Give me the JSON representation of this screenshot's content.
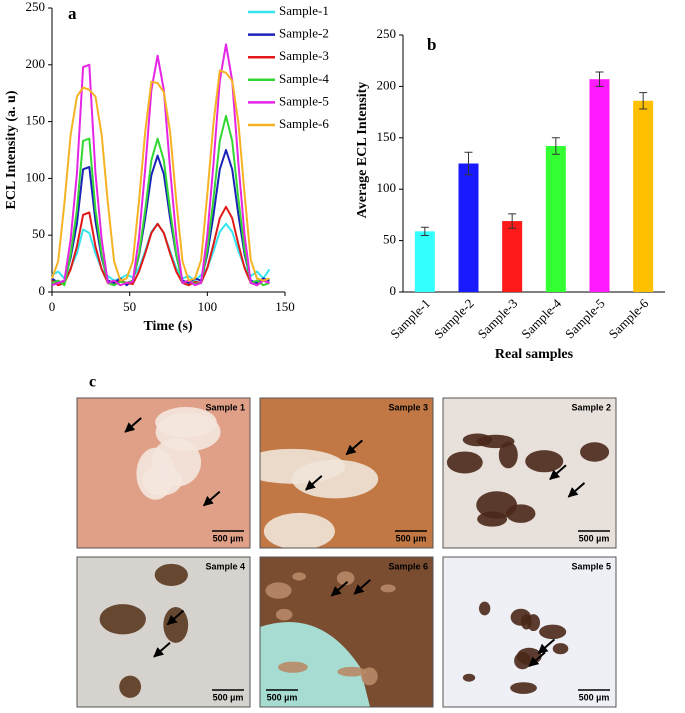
{
  "chart_data": [
    {
      "type": "line",
      "title": "a",
      "x_label": "Time (s)",
      "y_label": "ECL Intensity (a. u)",
      "x": [
        0,
        4,
        8,
        12,
        16,
        20,
        24,
        28,
        32,
        36,
        40,
        44,
        48,
        52,
        56,
        60,
        64,
        68,
        72,
        76,
        80,
        84,
        88,
        92,
        96,
        100,
        104,
        108,
        112,
        116,
        120,
        124,
        128,
        132,
        136,
        140
      ],
      "series": [
        {
          "name": "Sample-1",
          "color": "#33e5f0",
          "values": [
            15,
            18,
            12,
            21,
            34,
            55,
            52,
            34,
            20,
            14,
            10,
            12,
            15,
            13,
            21,
            36,
            53,
            60,
            52,
            36,
            21,
            12,
            14,
            10,
            15,
            21,
            36,
            53,
            60,
            53,
            36,
            22,
            14,
            18,
            12,
            20
          ]
        },
        {
          "name": "Sample-2",
          "color": "#1a22b8",
          "values": [
            12,
            8,
            10,
            30,
            60,
            108,
            110,
            62,
            30,
            10,
            8,
            12,
            6,
            10,
            32,
            65,
            103,
            120,
            104,
            65,
            32,
            10,
            8,
            12,
            10,
            33,
            68,
            108,
            125,
            108,
            68,
            33,
            10,
            8,
            12,
            10
          ]
        },
        {
          "name": "Sample-3",
          "color": "#e01818",
          "values": [
            10,
            6,
            8,
            20,
            40,
            68,
            70,
            40,
            20,
            8,
            6,
            10,
            8,
            7,
            18,
            34,
            52,
            60,
            52,
            34,
            18,
            8,
            6,
            9,
            8,
            21,
            42,
            65,
            75,
            65,
            42,
            21,
            8,
            6,
            10,
            8
          ]
        },
        {
          "name": "Sample-4",
          "color": "#33d633",
          "values": [
            8,
            10,
            6,
            33,
            72,
            133,
            135,
            72,
            33,
            8,
            6,
            9,
            8,
            10,
            33,
            72,
            116,
            135,
            116,
            72,
            33,
            8,
            10,
            7,
            8,
            37,
            82,
            133,
            155,
            133,
            82,
            37,
            8,
            10,
            6,
            8
          ]
        },
        {
          "name": "Sample-5",
          "color": "#e524e5",
          "values": [
            6,
            8,
            10,
            46,
            104,
            198,
            200,
            104,
            46,
            8,
            10,
            6,
            8,
            9,
            48,
            108,
            178,
            208,
            178,
            108,
            48,
            8,
            10,
            6,
            8,
            50,
            113,
            186,
            218,
            186,
            113,
            50,
            8,
            6,
            10,
            8
          ]
        },
        {
          "name": "Sample-6",
          "color": "#f5b324",
          "values": [
            12,
            27,
            78,
            138,
            172,
            180,
            178,
            172,
            138,
            78,
            27,
            10,
            12,
            27,
            80,
            141,
            185,
            184,
            176,
            141,
            80,
            27,
            10,
            12,
            28,
            86,
            149,
            195,
            193,
            186,
            149,
            86,
            28,
            12,
            10,
            12
          ]
        }
      ],
      "xlim": [
        0,
        150
      ],
      "xticks": [
        0,
        50,
        100,
        150
      ],
      "ylim": [
        0,
        250
      ],
      "yticks": [
        0,
        50,
        100,
        150,
        200,
        250
      ],
      "legend": "upper right"
    },
    {
      "type": "bar",
      "title": "b",
      "x_label": "Real samples",
      "y_label": "Average ECL Intensity",
      "categories": [
        "Sample-1",
        "Sample-2",
        "Sample-3",
        "Sample-4",
        "Sample-5",
        "Sample-6"
      ],
      "values": [
        59,
        125,
        69,
        142,
        207,
        186
      ],
      "errors": [
        4,
        11,
        7,
        8,
        7,
        8
      ],
      "colors": [
        "#33ffff",
        "#1a1aff",
        "#ff1a1a",
        "#33ff33",
        "#ff1aff",
        "#ffc000"
      ],
      "ylim": [
        0,
        250
      ],
      "yticks": [
        0,
        50,
        100,
        150,
        200,
        250
      ]
    }
  ],
  "panel_c": {
    "label": "c",
    "images": [
      {
        "label": "Sample 1",
        "scale": "500 µm"
      },
      {
        "label": "Sample 3",
        "scale": "500 µm"
      },
      {
        "label": "Sample 2",
        "scale": "500 µm"
      },
      {
        "label": "Sample 4",
        "scale": "500 µm"
      },
      {
        "label": "Sample 6",
        "scale": "500 µm"
      },
      {
        "label": "Sample 5",
        "scale": "500 µm"
      }
    ]
  }
}
